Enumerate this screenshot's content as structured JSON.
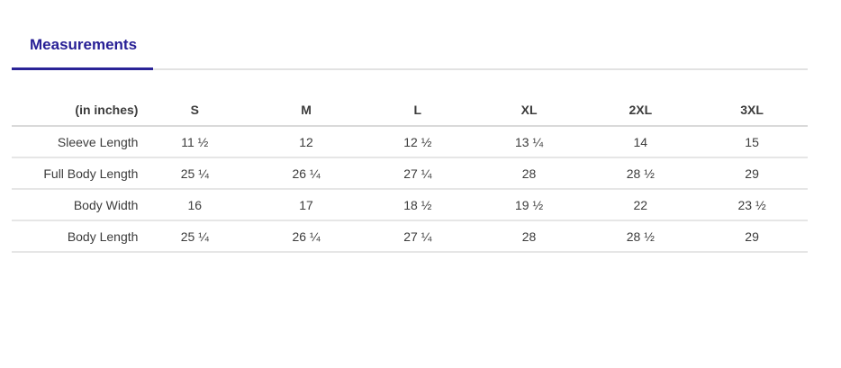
{
  "tabs": {
    "measurements": {
      "label": "Measurements"
    }
  },
  "colors": {
    "accent": "#282096",
    "tab_rule": "#e2e2e2",
    "header_border": "#d9d9d9",
    "row_border": "#e6e6e6",
    "text": "#3c3c3c"
  },
  "table": {
    "unit_header": "(in inches)",
    "size_headers": [
      "S",
      "M",
      "L",
      "XL",
      "2XL",
      "3XL"
    ],
    "rows": [
      {
        "label": "Sleeve Length",
        "values": [
          "11 ½",
          "12",
          "12 ½",
          "13 ¼",
          "14",
          "15"
        ]
      },
      {
        "label": "Full Body Length",
        "values": [
          "25 ¼",
          "26 ¼",
          "27 ¼",
          "28",
          "28 ½",
          "29"
        ]
      },
      {
        "label": "Body Width",
        "values": [
          "16",
          "17",
          "18 ½",
          "19 ½",
          "22",
          "23 ½"
        ]
      },
      {
        "label": "Body Length",
        "values": [
          "25 ¼",
          "26 ¼",
          "27 ¼",
          "28",
          "28 ½",
          "29"
        ]
      }
    ]
  }
}
